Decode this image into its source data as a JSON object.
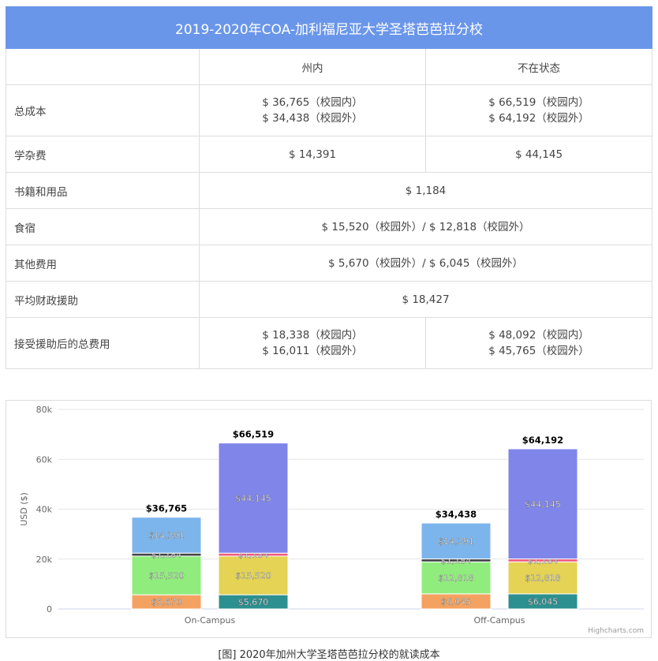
{
  "table": {
    "title": "2019-2020年COA-加利福尼亚大学圣塔芭芭拉分校",
    "col_headers": [
      "",
      "州内",
      "不在状态"
    ],
    "rows": [
      {
        "label": "总成本",
        "in_state": [
          "$ 36,765（校园内）",
          "$ 34,438（校园外）"
        ],
        "out_state": [
          "$ 66,519（校园内）",
          "$ 64,192（校园外）"
        ]
      },
      {
        "label": "学杂费",
        "in_state": [
          "$ 14,391"
        ],
        "out_state": [
          "$ 44,145"
        ]
      },
      {
        "label": "书籍和用品",
        "shared": "$ 1,184"
      },
      {
        "label": "食宿",
        "shared": "$ 15,520（校园外）/ $ 12,818（校园外）"
      },
      {
        "label": "其他费用",
        "shared": "$ 5,670（校园外）/ $ 6,045（校园外）"
      },
      {
        "label": "平均财政援助",
        "shared": "$ 18,427"
      },
      {
        "label": "接受援助后的总费用",
        "in_state": [
          "$ 18,338（校园内）",
          "$ 16,011（校园外）"
        ],
        "out_state": [
          "$ 48,092（校园内）",
          "$ 45,765（校园外）"
        ]
      }
    ]
  },
  "chart_data": {
    "type": "bar",
    "stacked": true,
    "categories": [
      "On-Campus",
      "Off-Campus"
    ],
    "ylabel": "USD ($)",
    "ylim": [
      0,
      80000
    ],
    "yticks": [
      0,
      20000,
      40000,
      60000,
      80000
    ],
    "ytick_labels": [
      "0",
      "20k",
      "40k",
      "60k",
      "80k"
    ],
    "grid": true,
    "credits": "Highcharts.com",
    "stacks": [
      {
        "category": "On-Campus",
        "total": 36765,
        "total_label": "$36,765",
        "segments": [
          {
            "value": 5670,
            "label": "$5,670",
            "color": "#f4a261"
          },
          {
            "value": 15520,
            "label": "$15,520",
            "color": "#90ed7d"
          },
          {
            "value": 1184,
            "label": "$1,184",
            "color": "#434348"
          },
          {
            "value": 14391,
            "label": "$14,391",
            "color": "#7cb5ec"
          }
        ]
      },
      {
        "category": "On-Campus",
        "total": 66519,
        "total_label": "$66,519",
        "segments": [
          {
            "value": 5670,
            "label": "$5,670",
            "color": "#2b908f"
          },
          {
            "value": 15520,
            "label": "$15,520",
            "color": "#e4d354"
          },
          {
            "value": 1184,
            "label": "$1,184",
            "color": "#f15c80"
          },
          {
            "value": 44145,
            "label": "$44,145",
            "color": "#8085e9"
          }
        ]
      },
      {
        "category": "Off-Campus",
        "total": 34438,
        "total_label": "$34,438",
        "segments": [
          {
            "value": 6045,
            "label": "$6,045",
            "color": "#f4a261"
          },
          {
            "value": 12818,
            "label": "$12,818",
            "color": "#90ed7d"
          },
          {
            "value": 1184,
            "label": "$1,184",
            "color": "#434348"
          },
          {
            "value": 14391,
            "label": "$14,391",
            "color": "#7cb5ec"
          }
        ]
      },
      {
        "category": "Off-Campus",
        "total": 64192,
        "total_label": "$64,192",
        "segments": [
          {
            "value": 6045,
            "label": "$6,045",
            "color": "#2b908f"
          },
          {
            "value": 12818,
            "label": "$12,818",
            "color": "#e4d354"
          },
          {
            "value": 1184,
            "label": "$1,184",
            "color": "#f15c80"
          },
          {
            "value": 44145,
            "label": "$44,145",
            "color": "#8085e9"
          }
        ]
      }
    ]
  },
  "caption": "[图] 2020年加州大学圣塔芭芭拉分校的就读成本"
}
